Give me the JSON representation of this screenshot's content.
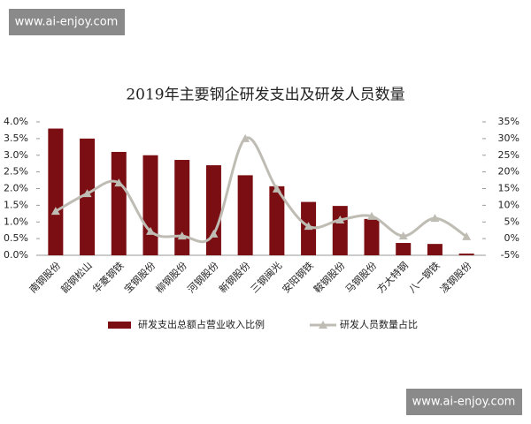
{
  "watermarks": [
    "www.ai-enjoy.com",
    "www.ai-enjoy.com"
  ],
  "chart_data": {
    "type": "bar",
    "title": "2019年主要钢企研发支出及研发人员数量",
    "categories": [
      "南钢股份",
      "韶钢松山",
      "华菱钢铁",
      "宝钢股份",
      "柳钢股份",
      "河钢股份",
      "新钢股份",
      "三钢闽光",
      "安阳钢铁",
      "鞍钢股份",
      "马钢股份",
      "方大特钢",
      "八一钢铁",
      "凌钢股份"
    ],
    "series": [
      {
        "name": "研发支出总额占营业收入比例",
        "type": "bar",
        "color": "#7b0e12",
        "axis": "y",
        "values": [
          3.8,
          3.5,
          3.1,
          3.0,
          2.86,
          2.7,
          2.4,
          2.07,
          1.6,
          1.48,
          1.09,
          0.37,
          0.34,
          0.05
        ]
      },
      {
        "name": "研发人员数量占比",
        "type": "line",
        "color": "#bfbcb4",
        "axis": "y2",
        "values": [
          8.2,
          13.5,
          16.7,
          2.2,
          0.8,
          1.4,
          30,
          14.9,
          3.7,
          5.6,
          6.7,
          0.8,
          6.1,
          0.6
        ]
      }
    ],
    "ylim": [
      0,
      4
    ],
    "yticks": [
      {
        "value": 0,
        "label": "0.0%"
      },
      {
        "value": 0.5,
        "label": "0.5%"
      },
      {
        "value": 1,
        "label": "1.0%"
      },
      {
        "value": 1.5,
        "label": "1.5%"
      },
      {
        "value": 2,
        "label": "2.0%"
      },
      {
        "value": 2.5,
        "label": "2.5%"
      },
      {
        "value": 3,
        "label": "3.0%"
      },
      {
        "value": 3.5,
        "label": "3.5%"
      },
      {
        "value": 4,
        "label": "4.0%"
      }
    ],
    "y2lim": [
      -5,
      35
    ],
    "y2ticks": [
      {
        "value": -5,
        "label": "-5%"
      },
      {
        "value": 0,
        "label": "0%"
      },
      {
        "value": 5,
        "label": "5%"
      },
      {
        "value": 10,
        "label": "10%"
      },
      {
        "value": 15,
        "label": "15%"
      },
      {
        "value": 20,
        "label": "20%"
      },
      {
        "value": 25,
        "label": "25%"
      },
      {
        "value": 30,
        "label": "30%"
      },
      {
        "value": 35,
        "label": "35%"
      }
    ],
    "grid": false,
    "legend": "bottom"
  }
}
